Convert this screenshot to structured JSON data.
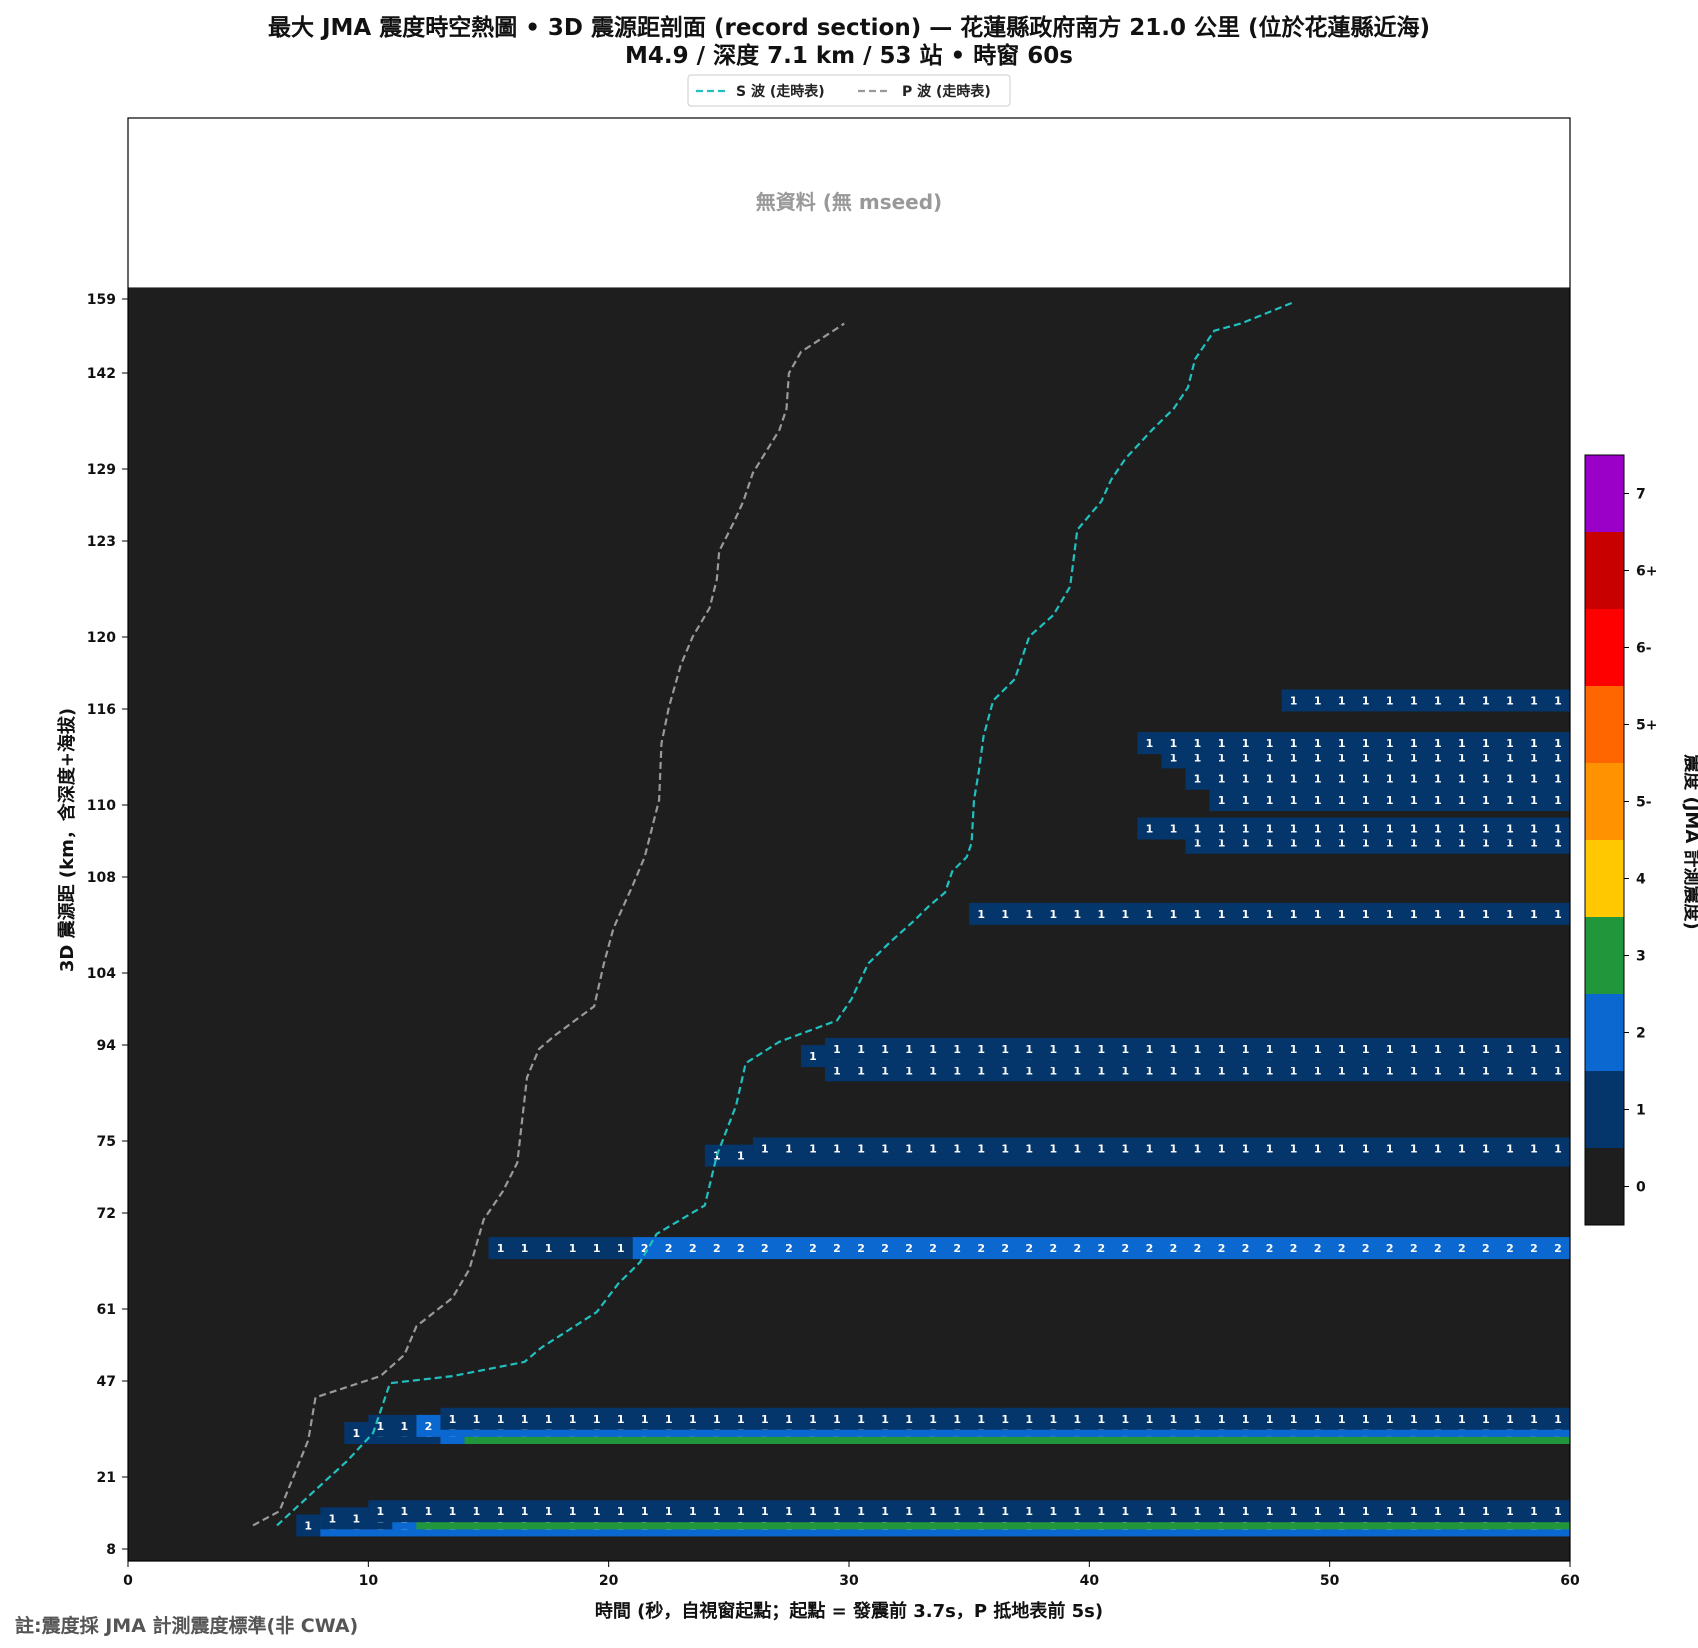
{
  "chart_data": {
    "type": "heatmap",
    "title": "最大 JMA 震度時空熱圖 • 3D 震源距剖面 (record section) — 花蓮縣政府南方  21.0  公里 (位於花蓮縣近海)",
    "subtitle": "M4.9 / 深度 7.1 km / 53 站 • 時窗 60s",
    "xlabel": "時間 (秒，自視窗起點；起點 = 發震前 3.7s，P 抵地表前 5s)",
    "ylabel": "3D 震源距 (km，含深度+海拔)",
    "colorbar_label": "震度 (JMA 計測震度)",
    "no_data_text": "無資料 (無 mseed)",
    "note": "註:震度採 JMA 計測震度標準(非 CWA)",
    "xlim": [
      0,
      60
    ],
    "xticks": [
      0,
      10,
      20,
      30,
      40,
      50,
      60
    ],
    "yticks": [
      "8",
      "21",
      "47",
      "61",
      "72",
      "75",
      "94",
      "104",
      "108",
      "110",
      "116",
      "120",
      "123",
      "129",
      "142",
      "159"
    ],
    "legend_position": "top-center",
    "legend": [
      {
        "name": "S 波 (走時表)",
        "color": "#20c0c0"
      },
      {
        "name": "P 波 (走時表)",
        "color": "#999999"
      }
    ],
    "colorbar": [
      {
        "label": "0",
        "color": "#1e1e1e"
      },
      {
        "label": "1",
        "color": "#04356b"
      },
      {
        "label": "2",
        "color": "#0a68d0"
      },
      {
        "label": "3",
        "color": "#22963a"
      },
      {
        "label": "4",
        "color": "#ffc800"
      },
      {
        "label": "5-",
        "color": "#ff9200"
      },
      {
        "label": "5+",
        "color": "#ff6600"
      },
      {
        "label": "6-",
        "color": "#ff0000"
      },
      {
        "label": "6+",
        "color": "#c80000"
      },
      {
        "label": "7",
        "color": "#9b00c8"
      }
    ],
    "rows": [
      {
        "y": 8.0,
        "segments": [
          [
            7,
            8,
            "1"
          ],
          [
            8,
            60,
            "2"
          ]
        ]
      },
      {
        "y": 9.0,
        "segments": [
          [
            8,
            11,
            "1"
          ],
          [
            11,
            12,
            "2"
          ],
          [
            12,
            60,
            "3"
          ]
        ]
      },
      {
        "y": 10.0,
        "segments": [
          [
            10,
            60,
            "1"
          ]
        ]
      },
      {
        "y": 21.0,
        "segments": [
          [
            9,
            13,
            "1"
          ],
          [
            13,
            14,
            "2"
          ],
          [
            14,
            60,
            "3"
          ]
        ]
      },
      {
        "y": 22.0,
        "segments": [
          [
            10,
            12,
            "1"
          ],
          [
            12,
            60,
            "2"
          ]
        ]
      },
      {
        "y": 23.0,
        "segments": [
          [
            13,
            60,
            "1"
          ]
        ]
      },
      {
        "y": 47.0,
        "segments": [
          [
            15,
            21,
            "1"
          ],
          [
            21,
            60,
            "2"
          ]
        ]
      },
      {
        "y": 60.0,
        "segments": [
          [
            24,
            60,
            "1"
          ]
        ]
      },
      {
        "y": 61.0,
        "segments": [
          [
            26,
            60,
            "1"
          ]
        ]
      },
      {
        "y": 72.0,
        "segments": [
          [
            29,
            60,
            "1"
          ]
        ]
      },
      {
        "y": 74.0,
        "segments": [
          [
            28,
            60,
            "1"
          ]
        ]
      },
      {
        "y": 75.0,
        "segments": [
          [
            29,
            60,
            "1"
          ]
        ]
      },
      {
        "y": 94.0,
        "segments": [
          [
            35,
            60,
            "1"
          ]
        ]
      },
      {
        "y": 104.0,
        "segments": [
          [
            44,
            60,
            "1"
          ]
        ]
      },
      {
        "y": 106.0,
        "segments": [
          [
            42,
            60,
            "1"
          ]
        ]
      },
      {
        "y": 110.0,
        "segments": [
          [
            45,
            60,
            "1"
          ]
        ]
      },
      {
        "y": 113.0,
        "segments": [
          [
            44,
            60,
            "1"
          ]
        ]
      },
      {
        "y": 116.0,
        "segments": [
          [
            43,
            60,
            "1"
          ]
        ]
      },
      {
        "y": 118.0,
        "segments": [
          [
            42,
            60,
            "1"
          ]
        ]
      },
      {
        "y": 124.0,
        "segments": [
          [
            48,
            60,
            "1"
          ]
        ]
      }
    ],
    "p_wave": [
      [
        5.2,
        8
      ],
      [
        6.3,
        10
      ],
      [
        7.5,
        20
      ],
      [
        7.8,
        26
      ],
      [
        10.5,
        29
      ],
      [
        11.5,
        32
      ],
      [
        12,
        36
      ],
      [
        13.5,
        40
      ],
      [
        14.2,
        44
      ],
      [
        14.8,
        51
      ],
      [
        15.6,
        55
      ],
      [
        16.2,
        59
      ],
      [
        16.6,
        71
      ],
      [
        17.1,
        75
      ],
      [
        17.8,
        77
      ],
      [
        19.4,
        81
      ],
      [
        19.8,
        87
      ],
      [
        20.2,
        92
      ],
      [
        21,
        98
      ],
      [
        21.5,
        102
      ],
      [
        21.8,
        106
      ],
      [
        22.1,
        110
      ],
      [
        22.2,
        118
      ],
      [
        22.5,
        123
      ],
      [
        23,
        129
      ],
      [
        23.5,
        133
      ],
      [
        24.2,
        137
      ],
      [
        24.5,
        141
      ],
      [
        24.6,
        145
      ],
      [
        25.2,
        149
      ],
      [
        25.6,
        152
      ],
      [
        26,
        156
      ],
      [
        27.1,
        162
      ],
      [
        27.4,
        165
      ],
      [
        27.5,
        170
      ],
      [
        28.0,
        173
      ],
      [
        29.8,
        177
      ]
    ],
    "s_wave": [
      [
        6.2,
        8
      ],
      [
        7.8,
        13
      ],
      [
        9.1,
        17
      ],
      [
        10.2,
        21
      ],
      [
        10.9,
        28
      ],
      [
        13.5,
        29
      ],
      [
        16.5,
        31
      ],
      [
        17.2,
        33
      ],
      [
        19.5,
        38
      ],
      [
        20.4,
        42
      ],
      [
        21.3,
        45
      ],
      [
        22,
        49
      ],
      [
        24,
        53
      ],
      [
        24.5,
        60
      ],
      [
        25.3,
        67
      ],
      [
        25.7,
        73
      ],
      [
        27.1,
        76
      ],
      [
        29.5,
        79
      ],
      [
        30.1,
        82
      ],
      [
        30.8,
        87
      ],
      [
        31.7,
        90
      ],
      [
        32.7,
        93
      ],
      [
        33.3,
        95
      ],
      [
        34,
        97
      ],
      [
        34.3,
        100
      ],
      [
        34.9,
        102
      ],
      [
        35.1,
        104
      ],
      [
        35.2,
        110
      ],
      [
        35.4,
        114
      ],
      [
        35.6,
        119
      ],
      [
        36,
        124
      ],
      [
        36.9,
        127
      ],
      [
        37.5,
        133
      ],
      [
        38.5,
        136
      ],
      [
        39.2,
        140
      ],
      [
        39.5,
        148
      ],
      [
        40.5,
        152
      ],
      [
        40.9,
        155
      ],
      [
        41.5,
        158
      ],
      [
        42.6,
        162
      ],
      [
        43.5,
        165
      ],
      [
        44.1,
        168
      ],
      [
        44.4,
        172
      ],
      [
        45.2,
        176
      ],
      [
        46.3,
        177
      ],
      [
        48.5,
        180
      ]
    ]
  }
}
